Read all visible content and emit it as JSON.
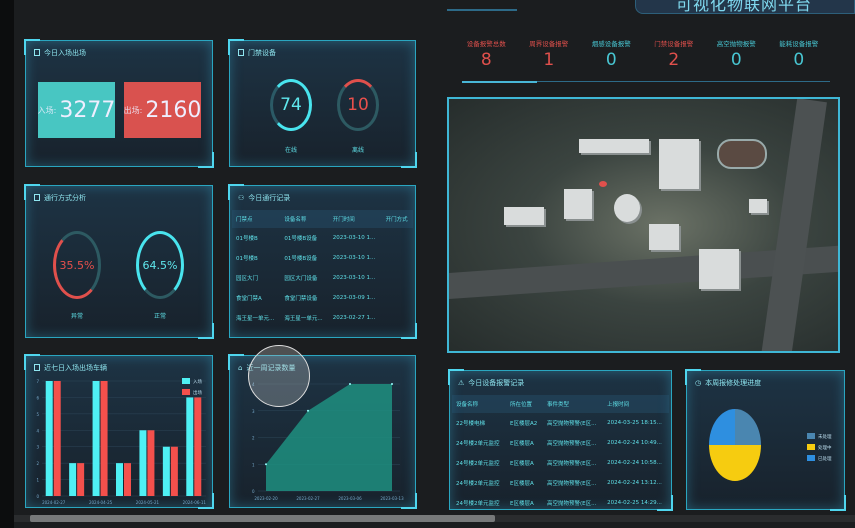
{
  "header": {
    "title": "可视化物联网平台"
  },
  "entry_exit": {
    "title": "今日入场出场",
    "in_label": "入场:",
    "in_value": "3277",
    "out_label": "出场:",
    "out_value": "2160",
    "in_color": "#48c6c2",
    "out_color": "#d9524f"
  },
  "door_devices": {
    "title": "门禁设备",
    "online_value": "74",
    "online_label": "在线",
    "offline_value": "10",
    "offline_label": "离线"
  },
  "pass_mode": {
    "title": "通行方式分析",
    "abnormal_value": "35.5%",
    "abnormal_label": "异常",
    "normal_value": "64.5%",
    "normal_label": "正常"
  },
  "pass_records": {
    "title": "今日通行记录",
    "columns": [
      "门禁点",
      "设备名称",
      "开门时间",
      "开门方式"
    ],
    "rows": [
      [
        "01号楼B",
        "01号楼B设备",
        "2023-03-10 1...",
        ""
      ],
      [
        "01号楼B",
        "01号楼B设备",
        "2023-03-10 1...",
        ""
      ],
      [
        "园区大门",
        "园区大门设备",
        "2023-03-10 1...",
        ""
      ],
      [
        "食堂门禁A",
        "食堂门禁设备",
        "2023-03-09 1...",
        ""
      ],
      [
        "海王星一单元...",
        "海王星一单元...",
        "2023-02-27 1...",
        ""
      ]
    ]
  },
  "alarm_stats": [
    {
      "label": "设备报警总数",
      "value": "8",
      "color": "#e0504c"
    },
    {
      "label": "周界设备报警",
      "value": "1",
      "color": "#e0504c"
    },
    {
      "label": "烟感设备报警",
      "value": "0",
      "color": "#48c6d2"
    },
    {
      "label": "门禁设备报警",
      "value": "2",
      "color": "#e0504c"
    },
    {
      "label": "高空抛物报警",
      "value": "0",
      "color": "#48c6d2"
    },
    {
      "label": "能耗设备报警",
      "value": "0",
      "color": "#48c6d2"
    }
  ],
  "alarm_records": {
    "title": "今日设备报警记录",
    "columns": [
      "设备名称",
      "所在位置",
      "事件类型",
      "上报时间"
    ],
    "rows": [
      [
        "22号楼电梯",
        "E区楼层A2",
        "高空抛物预警(E区...",
        "2024-03-25 18:15..."
      ],
      [
        "24号楼2单元监控",
        "E区楼层A",
        "高空抛物预警(E区...",
        "2024-02-24 10:49..."
      ],
      [
        "24号楼2单元监控",
        "E区楼层A",
        "高空抛物预警(E区...",
        "2024-02-24 10:58..."
      ],
      [
        "24号楼2单元监控",
        "E区楼层A",
        "高空抛物预警(E区...",
        "2024-02-24 13:12..."
      ],
      [
        "24号楼2单元监控",
        "E区楼层A",
        "高空抛物预警(E区...",
        "2024-02-25 14:29..."
      ]
    ]
  },
  "chart_data": [
    {
      "type": "bar",
      "title": "近七日入场出场车辆",
      "categories": [
        "2024-02-27",
        "",
        "2024-04-25",
        "",
        "2024-05-21",
        "",
        "2024-06-11"
      ],
      "ylim": [
        0,
        7
      ],
      "grid": true,
      "legend": "top-right",
      "series": [
        {
          "name": "入场",
          "color": "#4ff0f4",
          "values": [
            7,
            2,
            7,
            2,
            4,
            3,
            6
          ]
        },
        {
          "name": "出场",
          "color": "#f4504c",
          "values": [
            7,
            2,
            7,
            2,
            4,
            3,
            6
          ]
        }
      ]
    },
    {
      "type": "area",
      "title": "近一周记录数量",
      "x": [
        "2023-02-20",
        "2023-02-27",
        "2023-03-06",
        "2023-03-13"
      ],
      "values": [
        1,
        3,
        4,
        4
      ],
      "ylim": [
        0,
        4
      ],
      "grid": true,
      "color": "#1f8f80"
    },
    {
      "type": "pie",
      "title": "本周报修处理进度",
      "legend": "right",
      "slices": [
        {
          "name": "未处理",
          "value": 25,
          "color": "#4a86b0"
        },
        {
          "name": "处理中",
          "value": 50,
          "color": "#f6cc10"
        },
        {
          "name": "已处理",
          "value": 25,
          "color": "#2e8fe0"
        }
      ]
    }
  ]
}
